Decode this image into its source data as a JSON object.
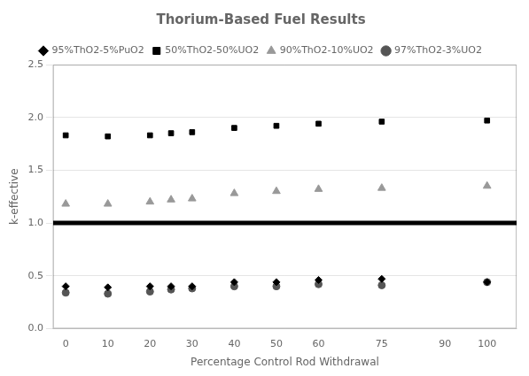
{
  "chart_data": {
    "type": "scatter",
    "title": "Thorium-Based Fuel Results",
    "x_label": "Percentage Control Rod Withdrawal",
    "y_label": "k-effective",
    "x": [
      0,
      10,
      20,
      25,
      30,
      40,
      50,
      60,
      75,
      100
    ],
    "series": [
      {
        "name": "95%ThO2-5%PuO2",
        "color": "#000000",
        "marker": "diamond",
        "values": [
          0.4,
          0.39,
          0.4,
          0.4,
          0.4,
          0.44,
          0.44,
          0.46,
          0.47,
          0.44
        ]
      },
      {
        "name": "50%ThO2-50%UO2",
        "color": "#000000",
        "marker": "square",
        "values": [
          1.83,
          1.82,
          1.83,
          1.85,
          1.86,
          1.9,
          1.92,
          1.94,
          1.96,
          1.97
        ]
      },
      {
        "name": "90%ThO2-10%UO2",
        "color": "#999999",
        "marker": "triangle",
        "values": [
          1.18,
          1.18,
          1.2,
          1.22,
          1.23,
          1.28,
          1.3,
          1.32,
          1.33,
          1.35
        ]
      },
      {
        "name": "97%ThO2-3%UO2",
        "color": "#555555",
        "marker": "circle",
        "values": [
          0.34,
          0.33,
          0.35,
          0.37,
          0.38,
          0.4,
          0.4,
          0.42,
          0.41,
          0.44
        ]
      }
    ],
    "hline": 1.0,
    "xlim": [
      -3,
      107
    ],
    "ylim": [
      0,
      2.5
    ],
    "xticks": [
      0,
      10,
      20,
      30,
      40,
      50,
      60,
      75,
      90,
      100
    ],
    "yticks": [
      {
        "value": 0,
        "label": "0.0"
      },
      0.5,
      {
        "value": 1.0,
        "label": "1.0"
      },
      1.5,
      {
        "value": 2.0,
        "label": "2.0"
      },
      2.5
    ],
    "grid": "y",
    "legend": "top"
  }
}
